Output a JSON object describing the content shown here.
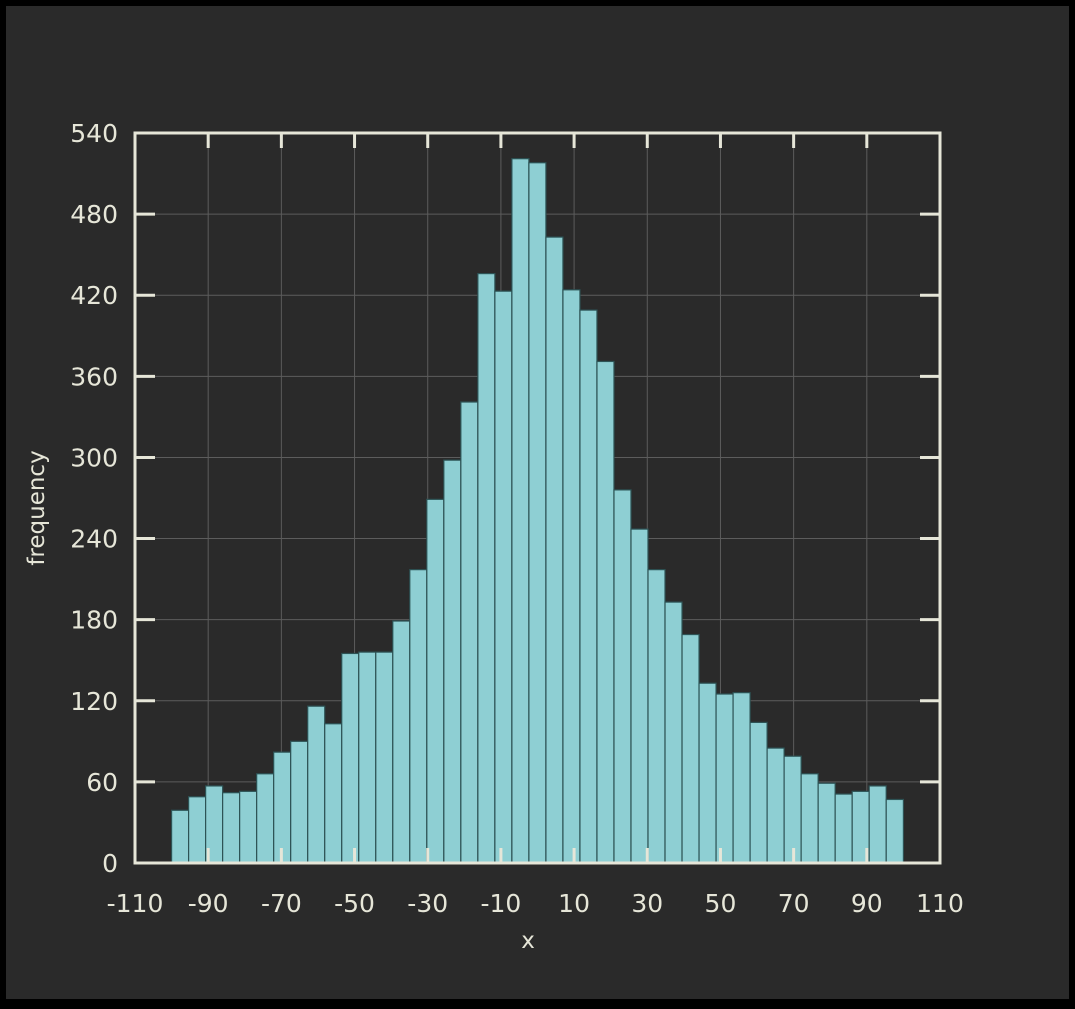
{
  "colors": {
    "background": "#2a2a2a",
    "border": "#000000",
    "axis": "#e6e6d8",
    "grid": "#5c5c5c",
    "bar_fill": "#8ecfd3",
    "bar_edge": "#2d5355",
    "text": "#e6e6d8"
  },
  "chart_data": {
    "type": "bar",
    "title": "",
    "xlabel": "x",
    "ylabel": "frequency",
    "xlim": [
      -110,
      110
    ],
    "ylim": [
      0,
      540
    ],
    "grid": true,
    "x_ticks": [
      -110,
      -90,
      -70,
      -50,
      -30,
      -10,
      10,
      30,
      50,
      70,
      90,
      110
    ],
    "x_tick_labels": [
      "-110",
      "-90",
      "-70",
      "-50",
      "-30",
      "-10",
      "10",
      "30",
      "50",
      "70",
      "90",
      "110"
    ],
    "y_ticks": [
      0,
      60,
      120,
      180,
      240,
      300,
      360,
      420,
      480,
      540
    ],
    "y_tick_labels": [
      "0",
      "60",
      "120",
      "180",
      "240",
      "300",
      "360",
      "420",
      "480",
      "540"
    ],
    "bin_edges": [
      -100,
      -95.35,
      -90.7,
      -86.05,
      -81.4,
      -76.75,
      -72.1,
      -67.45,
      -62.8,
      -58.15,
      -53.5,
      -48.85,
      -44.2,
      -39.55,
      -34.9,
      -30.25,
      -25.6,
      -20.95,
      -16.3,
      -11.65,
      -7.0,
      -2.35,
      2.3,
      6.95,
      11.6,
      16.25,
      20.9,
      25.55,
      30.2,
      34.85,
      39.5,
      44.15,
      48.8,
      53.45,
      58.1,
      62.75,
      67.4,
      72.05,
      76.7,
      81.35,
      86.0,
      90.65,
      95.3,
      100
    ],
    "values": [
      39,
      49,
      57,
      52,
      53,
      66,
      82,
      90,
      116,
      103,
      155,
      156,
      156,
      179,
      217,
      269,
      298,
      341,
      436,
      423,
      521,
      518,
      463,
      424,
      409,
      371,
      276,
      247,
      217,
      193,
      169,
      133,
      125,
      126,
      104,
      85,
      79,
      66,
      59,
      51,
      53,
      57,
      47
    ]
  }
}
